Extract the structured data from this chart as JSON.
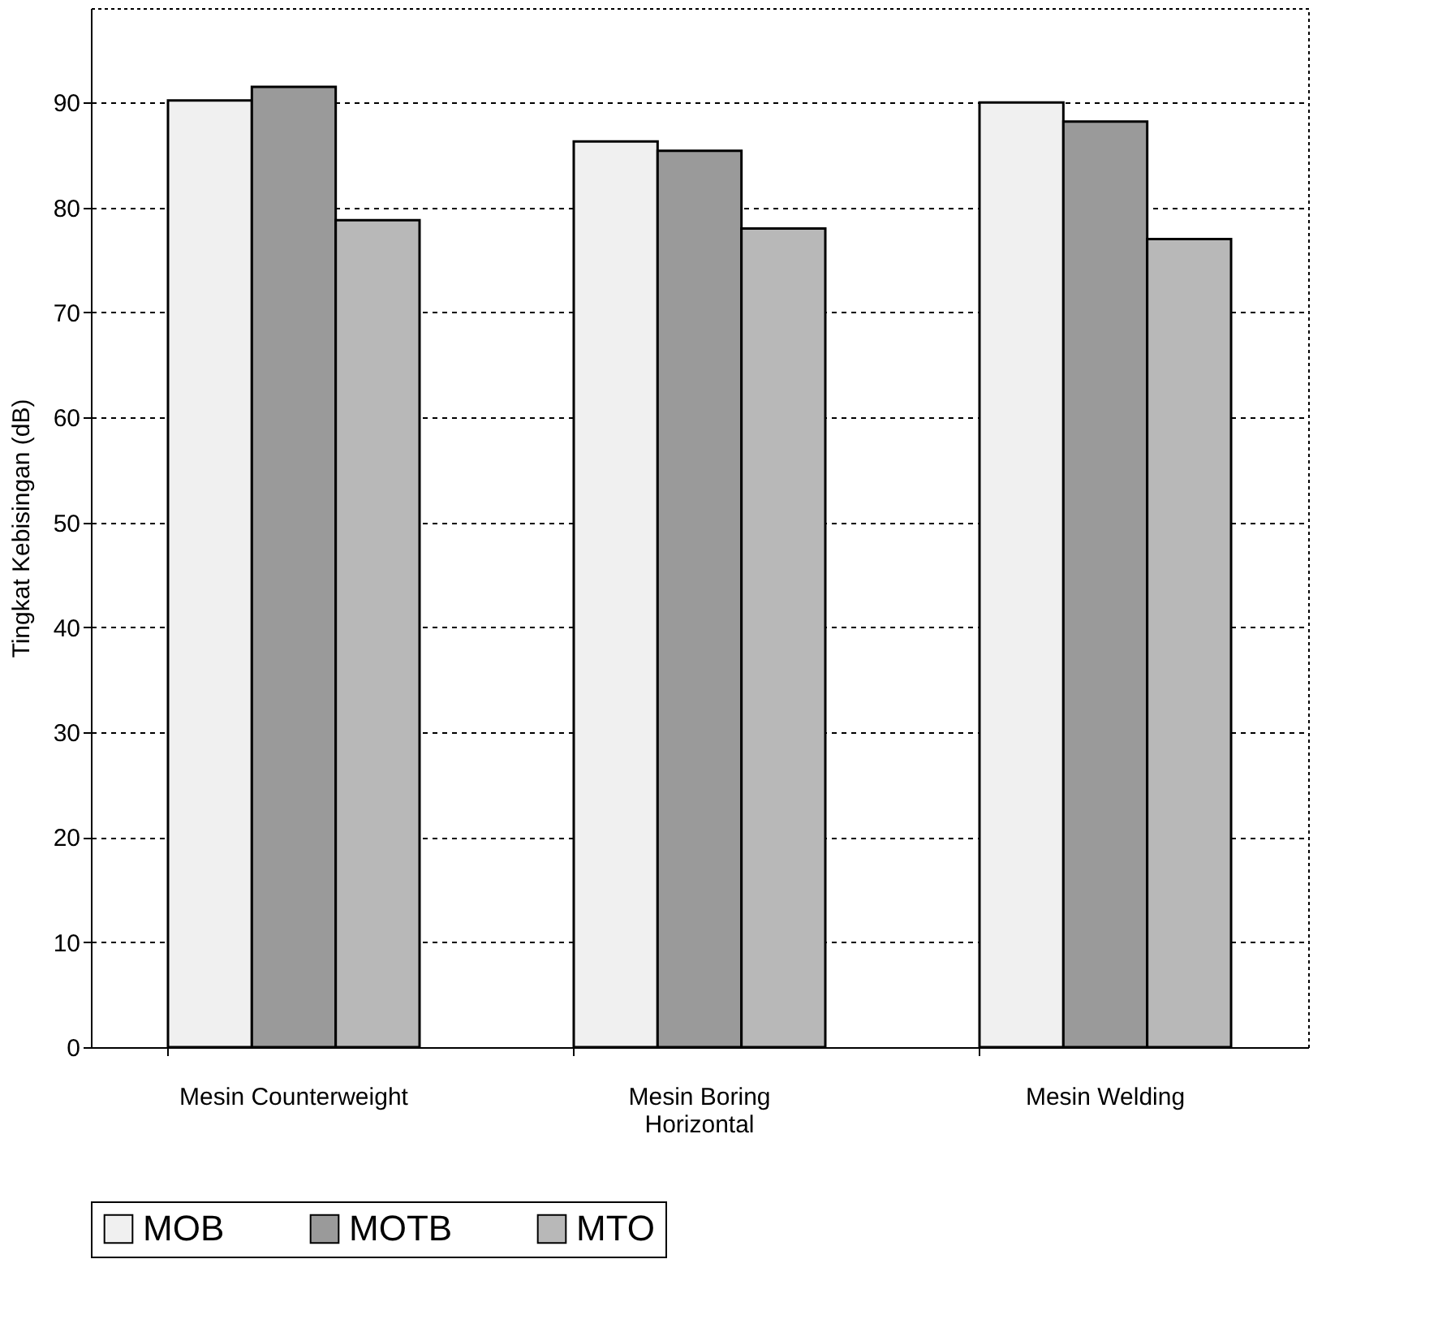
{
  "chart_data": {
    "type": "bar",
    "ylabel": "Tingkat Kebisingan (dB)",
    "categories": [
      "Mesin Counterweight",
      "Mesin Boring Horizontal",
      "Mesin Welding"
    ],
    "series": [
      {
        "name": "MOB",
        "color": "#f0f0f0",
        "values": [
          90.2,
          86.3,
          90
        ]
      },
      {
        "name": "MOTB",
        "color": "#9a9a9a",
        "values": [
          91.5,
          85.4,
          88.2
        ]
      },
      {
        "name": "MTO",
        "color": "#b8b8b8",
        "values": [
          78.8,
          78,
          77
        ]
      }
    ],
    "ylim": [
      0,
      99
    ],
    "yticks": [
      0,
      10,
      20,
      30,
      40,
      50,
      60,
      70,
      80,
      90
    ],
    "grid": "y",
    "legend": "bottom"
  }
}
